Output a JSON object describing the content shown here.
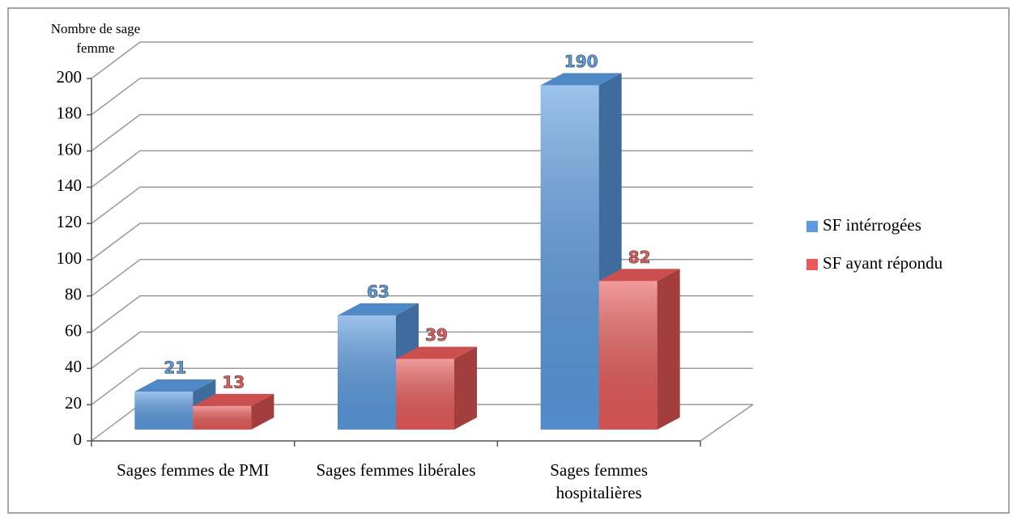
{
  "chart_data": {
    "type": "bar3d",
    "y_axis_label": "Nombre de sage femme",
    "categories": [
      "Sages femmes de PMI",
      "Sages femmes libérales",
      "Sages femmes hospitalières"
    ],
    "series": [
      {
        "name": "SF intérrogées",
        "color": "#5b9be0",
        "values": [
          21,
          63,
          190
        ]
      },
      {
        "name": "SF ayant répondu",
        "color": "#e85a5a",
        "values": [
          13,
          39,
          82
        ]
      }
    ],
    "ylim": [
      0,
      200
    ],
    "yticks": [
      0,
      20,
      40,
      60,
      80,
      100,
      120,
      140,
      160,
      180,
      200
    ],
    "grid": true
  }
}
